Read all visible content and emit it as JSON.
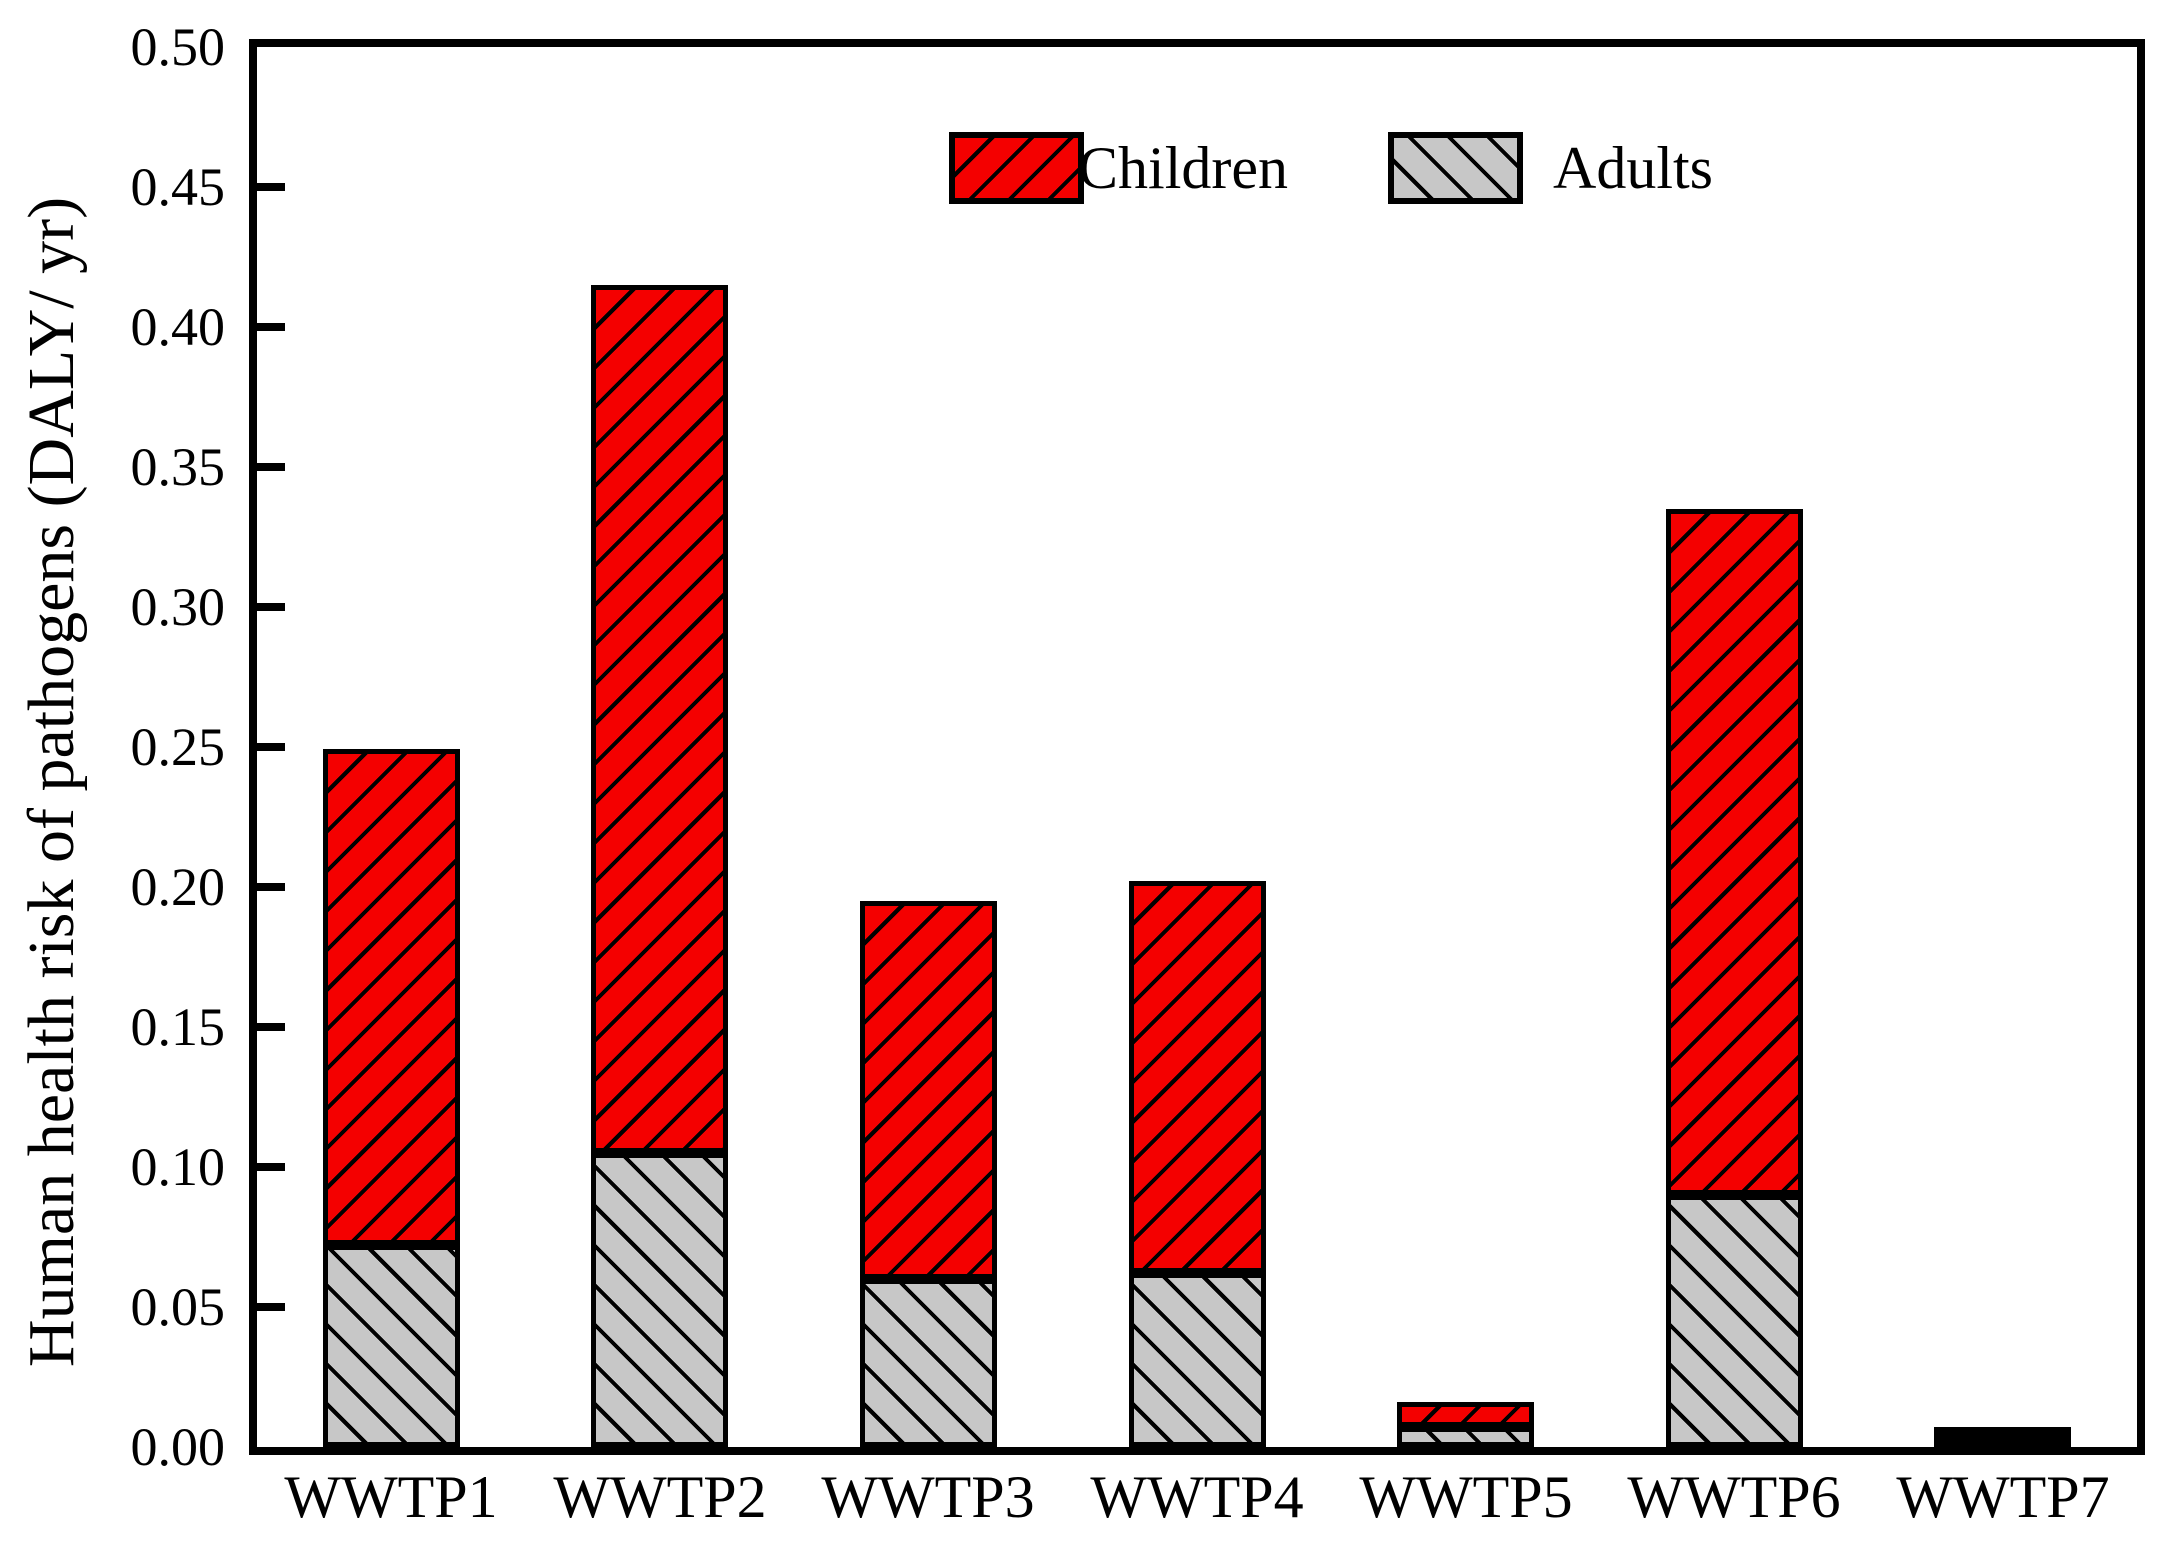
{
  "chart_data": {
    "type": "bar",
    "stacked": true,
    "categories": [
      "WWTP1",
      "WWTP2",
      "WWTP3",
      "WWTP4",
      "WWTP5",
      "WWTP6",
      "WWTP7"
    ],
    "series": [
      {
        "name": "Children",
        "color": "#f40000",
        "hatch": "/",
        "values": [
          0.177,
          0.31,
          0.135,
          0.14,
          0.009,
          0.245,
          0.001
        ]
      },
      {
        "name": "Adults",
        "color": "#c7c7c7",
        "hatch": "\\",
        "values": [
          0.072,
          0.105,
          0.06,
          0.062,
          0.007,
          0.09,
          0.001
        ]
      }
    ],
    "totals": [
      0.249,
      0.415,
      0.195,
      0.202,
      0.016,
      0.335,
      0.002
    ],
    "title": "",
    "xlabel": "",
    "ylabel": "Human health risk of pathogens (DALY/ yr)",
    "ylim": [
      0,
      0.5
    ],
    "ytick_step": 0.05,
    "yticks": [
      "0.00",
      "0.05",
      "0.10",
      "0.15",
      "0.20",
      "0.25",
      "0.30",
      "0.35",
      "0.40",
      "0.45",
      "0.50"
    ],
    "grid": false,
    "legend_position": "top-center-inside",
    "axis_color": "#000000",
    "background_color": "#ffffff"
  }
}
